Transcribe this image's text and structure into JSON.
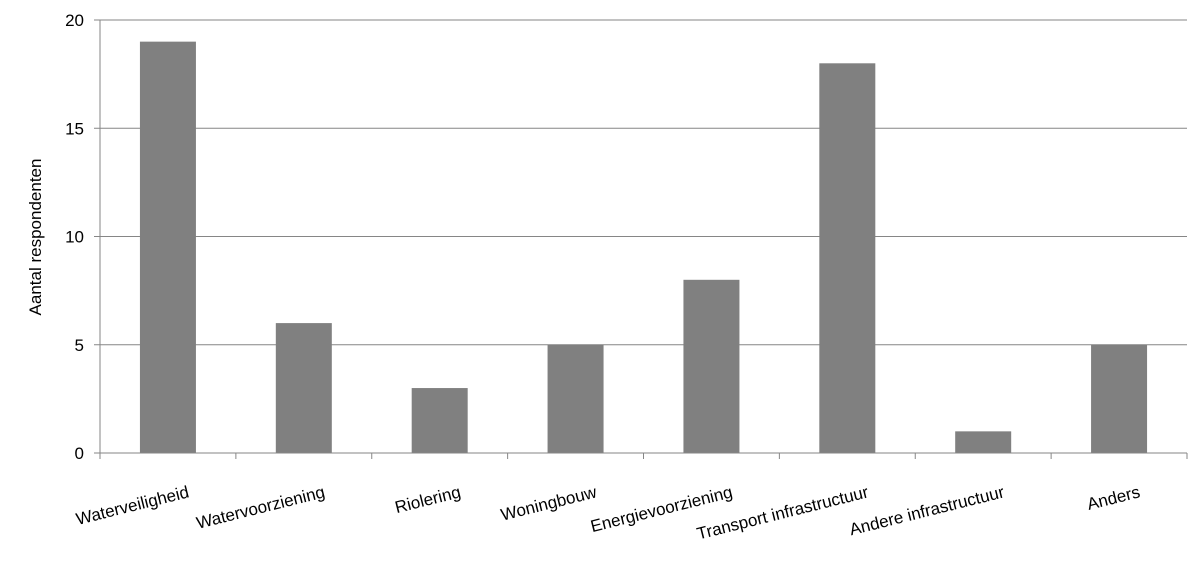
{
  "chart_data": {
    "type": "bar",
    "title": "",
    "xlabel": "",
    "ylabel": "Aantal respondenten",
    "categories": [
      "Waterveiligheid",
      "Watervoorziening",
      "Riolering",
      "Woningbouw",
      "Energievoorziening",
      "Transport infrastructuur",
      "Andere infrastructuur",
      "Anders"
    ],
    "values": [
      19,
      6,
      3,
      5,
      8,
      18,
      1,
      5
    ],
    "ylim": [
      0,
      20
    ],
    "yticks": [
      "0",
      "5",
      "10",
      "15",
      "20"
    ],
    "grid": true,
    "legend": "none",
    "colors": {
      "bar": "#808080",
      "grid": "#868686",
      "axis": "#868686"
    }
  }
}
